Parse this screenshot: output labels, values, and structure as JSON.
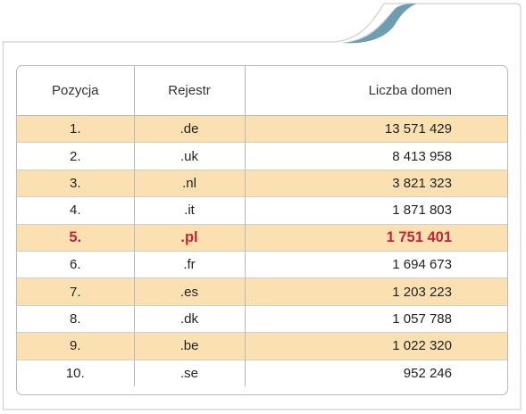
{
  "table": {
    "headers": [
      "Pozycja",
      "Rejestr",
      "Liczba domen"
    ],
    "rows": [
      [
        "1.",
        ".de",
        "13 571 429"
      ],
      [
        "2.",
        ".uk",
        "8 413 958"
      ],
      [
        "3.",
        ".nl",
        "3 821 323"
      ],
      [
        "4.",
        ".it",
        "1 871 803"
      ],
      [
        "5.",
        ".pl",
        "1 751 401"
      ],
      [
        "6.",
        ".fr",
        "1 694 673"
      ],
      [
        "7.",
        ".es",
        "1 203 223"
      ],
      [
        "8.",
        ".dk",
        "1 057 788"
      ],
      [
        "9.",
        ".be",
        "1 022 320"
      ],
      [
        "10.",
        ".se",
        "952 246"
      ]
    ],
    "highlight_row": 4
  },
  "colors": {
    "stripe": "#fbe1b1",
    "highlight_text": "#c4233a",
    "tab_accent": "#6f9db0",
    "border": "#b9b9b9"
  }
}
